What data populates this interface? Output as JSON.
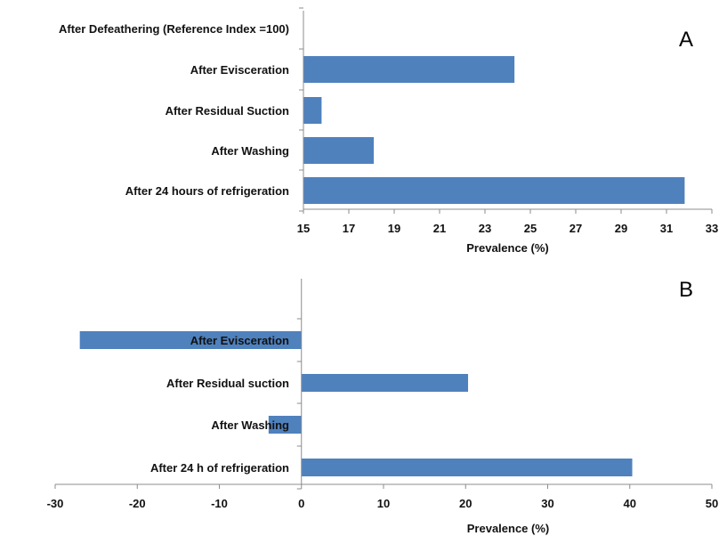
{
  "chart_data": [
    {
      "type": "bar",
      "orientation": "horizontal",
      "panel_label": "A",
      "categories": [
        "After Defeathering (Reference Index =100)",
        "After Evisceration",
        "After Residual Suction",
        "After Washing",
        "After 24 hours of refrigeration"
      ],
      "values": [
        null,
        24.3,
        15.8,
        18.1,
        31.8
      ],
      "xlabel": "Prevalence (%)",
      "ylabel": "",
      "xlim": [
        15,
        33
      ],
      "xticks": [
        "15",
        "17",
        "19",
        "21",
        "23",
        "25",
        "27",
        "29",
        "31",
        "33"
      ],
      "color": "#4f81bd",
      "grid": false,
      "legend": "none"
    },
    {
      "type": "bar",
      "orientation": "horizontal",
      "panel_label": "B",
      "categories": [
        "After Evisceration",
        "After Residual suction",
        "After Washing",
        "After 24 h of refrigeration"
      ],
      "values": [
        -27,
        20.3,
        -4,
        40.3
      ],
      "xlabel": "Prevalence (%)",
      "ylabel": "",
      "xlim": [
        -30,
        50
      ],
      "xticks": [
        "-30",
        "-20",
        "-10",
        "0",
        "10",
        "20",
        "30",
        "40",
        "50"
      ],
      "color": "#4f81bd",
      "grid": false,
      "legend": "none"
    }
  ]
}
